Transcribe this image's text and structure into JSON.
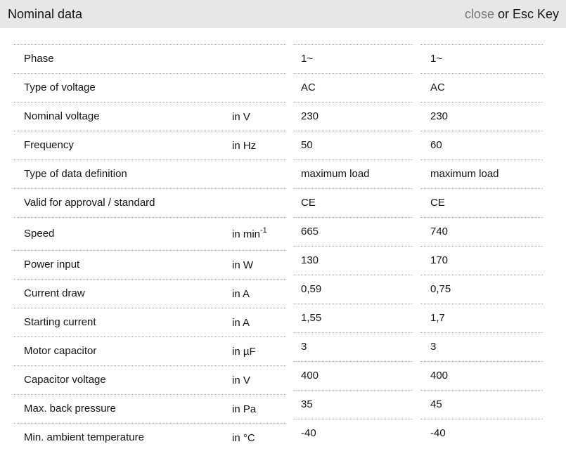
{
  "header": {
    "title": "Nominal data",
    "close_label": "close",
    "esc_hint": "or Esc Key"
  },
  "colors": {
    "header_bg": "#e7e7e7",
    "close_link": "#757575",
    "text": "#141414",
    "separator": "#b0b0b0"
  },
  "table": {
    "rows": [
      {
        "label": "Phase",
        "unit": "",
        "v1": "1~",
        "v2": "1~"
      },
      {
        "label": "Type of voltage",
        "unit": "",
        "v1": "AC",
        "v2": "AC"
      },
      {
        "label": "Nominal voltage",
        "unit": "in V",
        "v1": "230",
        "v2": "230"
      },
      {
        "label": "Frequency",
        "unit": "in Hz",
        "v1": "50",
        "v2": "60"
      },
      {
        "label": "Type of data definition",
        "unit": "",
        "v1": "maximum load",
        "v2": "maximum load"
      },
      {
        "label": "Valid for approval / standard",
        "unit": "",
        "v1": "CE",
        "v2": "CE"
      },
      {
        "label": "Speed",
        "unit": "in min",
        "unit_sup": "-1",
        "tall": true,
        "v1": "665",
        "v2": "740"
      },
      {
        "label": "Power input",
        "unit": "in W",
        "v1": "130",
        "v2": "170"
      },
      {
        "label": "Current draw",
        "unit": "in A",
        "v1": "0,59",
        "v2": "0,75"
      },
      {
        "label": "Starting current",
        "unit": "in A",
        "v1": "1,55",
        "v2": "1,7"
      },
      {
        "label": "Motor capacitor",
        "unit": "in µF",
        "v1": "3",
        "v2": "3"
      },
      {
        "label": "Capacitor voltage",
        "unit": "in V",
        "v1": "400",
        "v2": "400"
      },
      {
        "label": "Max. back pressure",
        "unit": "in Pa",
        "v1": "35",
        "v2": "45"
      },
      {
        "label": "Min. ambient temperature",
        "unit": "in °C",
        "v1": "-40",
        "v2": "-40"
      }
    ]
  }
}
